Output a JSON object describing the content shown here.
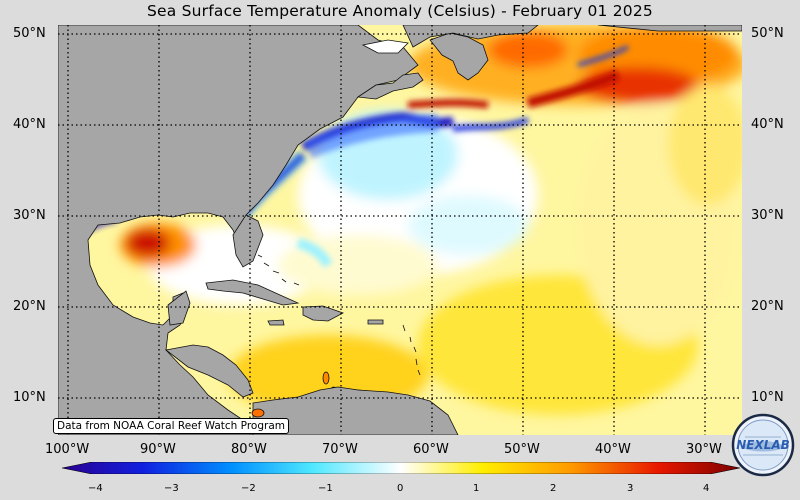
{
  "title": "Sea Surface Temperature Anomaly (Celsius) - February 01 2025",
  "lat_labels_left": [
    "50°N",
    "40°N",
    "30°N",
    "20°N",
    "10°N"
  ],
  "lat_labels_right": [
    "50°N",
    "40°N",
    "30°N",
    "20°N",
    "10°N"
  ],
  "lon_labels": [
    "100°W",
    "90°W",
    "80°W",
    "70°W",
    "60°W",
    "50°W",
    "40°W",
    "30°W"
  ],
  "credit": "Data from NOAA Coral Reef Watch Program",
  "colorbar": {
    "ticks": [
      "−4",
      "−3",
      "−2",
      "−1",
      "0",
      "1",
      "2",
      "3",
      "4"
    ]
  },
  "logo_text": "NEXLAB",
  "colors": {
    "land": "#a6a6a6",
    "neutral_ocean": "#ffffff",
    "warm_low": "#ffe600",
    "warm_mid": "#ff9900",
    "warm_high": "#e01000",
    "cold_low": "#9ff2ff",
    "cold_high": "#1a14b8"
  }
}
